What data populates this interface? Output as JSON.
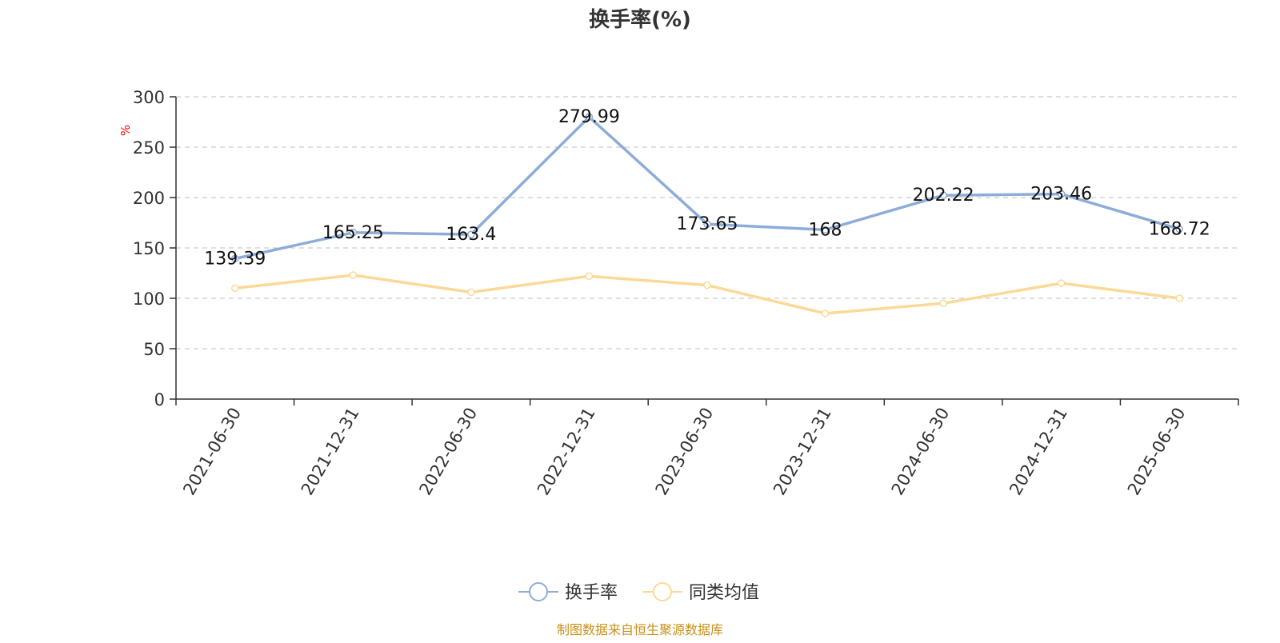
{
  "chart_data": {
    "type": "line",
    "title": "换手率(%)",
    "ylabel": "%",
    "xlabel": "",
    "ylim": [
      0,
      300
    ],
    "y_ticks": [
      0,
      50,
      100,
      150,
      200,
      250,
      300
    ],
    "grid": true,
    "legend_position": "bottom",
    "categories": [
      "2021-06-30",
      "2021-12-31",
      "2022-06-30",
      "2022-12-31",
      "2023-06-30",
      "2023-12-31",
      "2024-06-30",
      "2024-12-31",
      "2025-06-30"
    ],
    "series": [
      {
        "name": "换手率",
        "color": "#8eacd8",
        "values": [
          139.39,
          165.25,
          163.4,
          279.99,
          173.65,
          168,
          202.22,
          203.46,
          168.72
        ],
        "labels": [
          "139.39",
          "165.25",
          "163.4",
          "279.99",
          "173.65",
          "168",
          "202.22",
          "203.46",
          "168.72"
        ]
      },
      {
        "name": "同类均值",
        "color": "#fbd996",
        "values": [
          110,
          123,
          106,
          122,
          113,
          85,
          95,
          115,
          100
        ]
      }
    ]
  },
  "source_note": "制图数据来自恒生聚源数据库",
  "colors": {
    "axis": "#333333",
    "grid": "#cccccc",
    "ylabel": "#ff0000",
    "source_note": "#c8901a"
  }
}
